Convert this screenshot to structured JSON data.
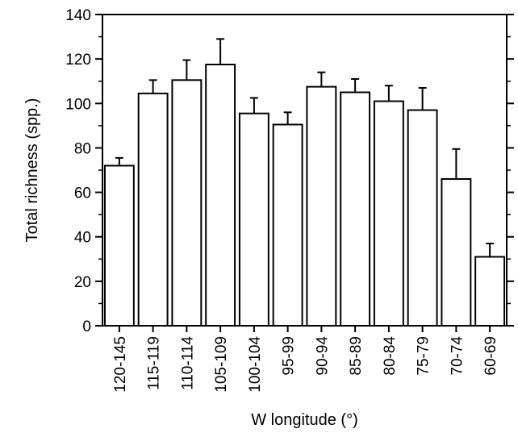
{
  "chart_data": {
    "type": "bar",
    "title": "",
    "xlabel": "W longitude (°)",
    "ylabel": "Total richness (spp.)",
    "ylim": [
      0,
      140
    ],
    "yticks": [
      0,
      20,
      40,
      60,
      80,
      100,
      120,
      140
    ],
    "grid": false,
    "legend": "none",
    "categories": [
      "120-145",
      "115-119",
      "110-114",
      "105-109",
      "100-104",
      "95-99",
      "90-94",
      "85-89",
      "80-84",
      "75-79",
      "70-74",
      "60-69"
    ],
    "values": [
      72,
      104.5,
      110.5,
      117.5,
      95.5,
      90.5,
      107.5,
      105,
      101,
      97,
      66,
      31
    ],
    "errors": [
      3.5,
      6,
      9,
      11.5,
      7,
      5.5,
      6.5,
      6,
      7,
      10,
      13.5,
      6
    ],
    "colors": {
      "bar_fill": "#ffffff",
      "bar_stroke": "#000000",
      "axis": "#000000"
    }
  }
}
